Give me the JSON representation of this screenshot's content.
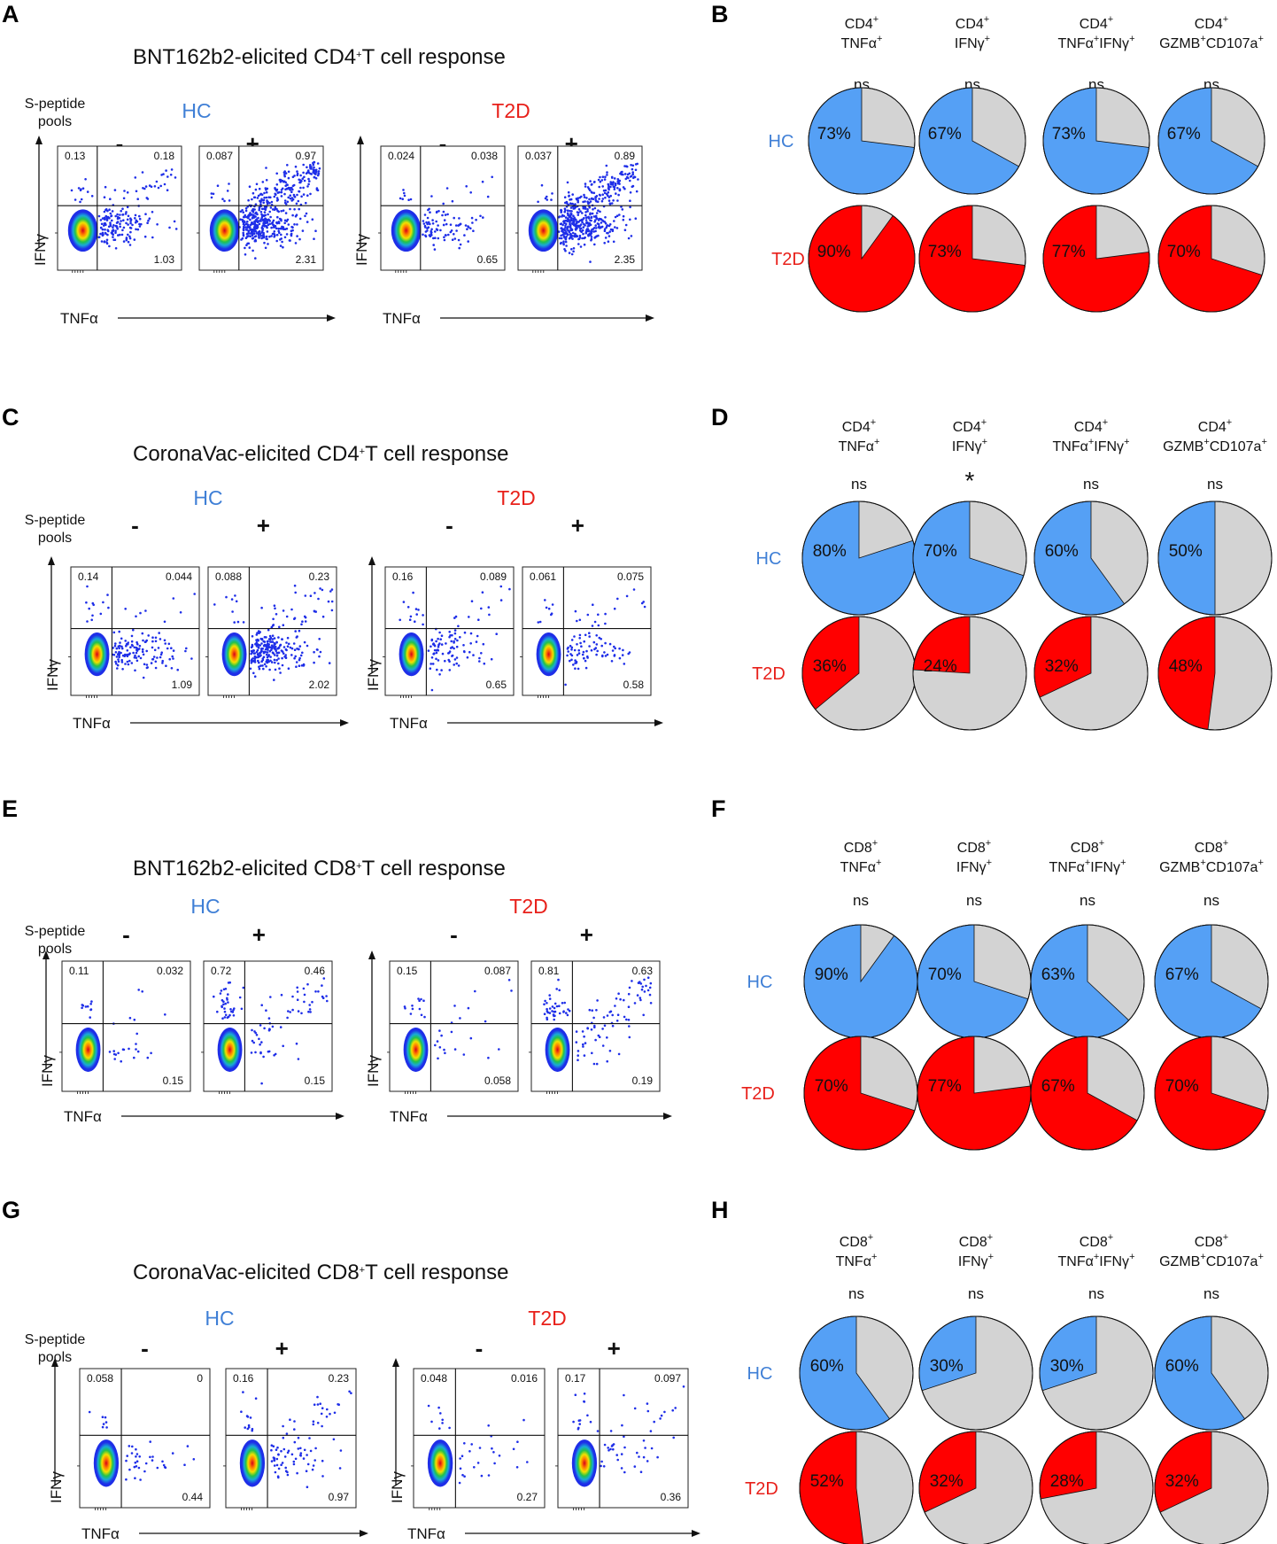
{
  "colors": {
    "hc": "#3f7fd6",
    "t2d": "#e8201a",
    "pie_hc": "#55a0f5",
    "pie_t2d": "#ff0000",
    "pie_rest": "#d3d3d3",
    "dot": "#1e2ee8"
  },
  "axes": {
    "x": "TNFα",
    "y": "IFNγ"
  },
  "stim": {
    "label1": "S-peptide",
    "label2": "pools",
    "minus": "-",
    "plus": "+"
  },
  "groups": {
    "hc": "HC",
    "t2d": "T2D"
  },
  "sections": [
    {
      "flow": {
        "letter": "A",
        "title": {
          "pre": "BNT162b2-elicited CD4",
          "sup": "+",
          "post": "T cell response"
        },
        "show_stim": true,
        "plots": [
          {
            "q": [
              "0.13",
              "0.18",
              "1.03"
            ]
          },
          {
            "q": [
              "0.087",
              "0.97",
              "2.31"
            ]
          },
          {
            "q": [
              "0.024",
              "0.038",
              "0.65"
            ]
          },
          {
            "q": [
              "0.037",
              "0.89",
              "2.35"
            ]
          }
        ]
      },
      "pies": {
        "letter": "B",
        "cols": [
          {
            "l1": "CD4",
            "l2": "TNFα",
            "sup": "+",
            "sig": "ns",
            "hc": 73,
            "hc_label": "73%",
            "t2d": 90,
            "t2d_label": "90%"
          },
          {
            "l1": "CD4",
            "l2": "IFNγ",
            "sup": "+",
            "sig": "ns",
            "hc": 67,
            "hc_label": "67%",
            "t2d": 73,
            "t2d_label": "73%"
          },
          {
            "l1": "CD4",
            "l2a": "TNFα",
            "l2b": "IFNγ",
            "sup": "+",
            "sig": "ns",
            "hc": 73,
            "hc_label": "73%",
            "t2d": 77,
            "t2d_label": "77%"
          },
          {
            "l1": "CD4",
            "l2a": "GZMB",
            "l2b": "CD107a",
            "sup": "+",
            "sig": "ns",
            "hc": 67,
            "hc_label": "67%",
            "t2d": 70,
            "t2d_label": "70%"
          }
        ]
      }
    },
    {
      "flow": {
        "letter": "C",
        "title": {
          "pre": "CoronaVac-elicited CD4",
          "sup": "+",
          "post": "T cell response"
        },
        "show_stim": true,
        "plots": [
          {
            "q": [
              "0.14",
              "0.044",
              "1.09"
            ]
          },
          {
            "q": [
              "0.088",
              "0.23",
              "2.02"
            ]
          },
          {
            "q": [
              "0.16",
              "0.089",
              "0.65"
            ]
          },
          {
            "q": [
              "0.061",
              "0.075",
              "0.58"
            ]
          }
        ]
      },
      "pies": {
        "letter": "D",
        "cols": [
          {
            "l1": "CD4",
            "l2": "TNFα",
            "sup": "+",
            "sig": "ns",
            "hc": 80,
            "hc_label": "80%",
            "t2d": 36,
            "t2d_label": "36%"
          },
          {
            "l1": "CD4",
            "l2": "IFNγ",
            "sup": "+",
            "sig": "*",
            "hc": 70,
            "hc_label": "70%",
            "t2d": 24,
            "t2d_label": "24%"
          },
          {
            "l1": "CD4",
            "l2a": "TNFα",
            "l2b": "IFNγ",
            "sup": "+",
            "sig": "ns",
            "hc": 60,
            "hc_label": "60%",
            "t2d": 32,
            "t2d_label": "32%"
          },
          {
            "l1": "CD4",
            "l2a": "GZMB",
            "l2b": "CD107a",
            "sup": "+",
            "sig": "ns",
            "hc": 50,
            "hc_label": "50%",
            "t2d": 48,
            "t2d_label": "48%"
          }
        ]
      }
    },
    {
      "flow": {
        "letter": "E",
        "title": {
          "pre": "BNT162b2-elicited CD8",
          "sup": "+",
          "post": "T cell response"
        },
        "show_stim": true,
        "plots": [
          {
            "q": [
              "0.11",
              "0.032",
              "0.15"
            ]
          },
          {
            "q": [
              "0.72",
              "0.46",
              "0.15"
            ]
          },
          {
            "q": [
              "0.15",
              "0.087",
              "0.058"
            ]
          },
          {
            "q": [
              "0.81",
              "0.63",
              "0.19"
            ]
          }
        ]
      },
      "pies": {
        "letter": "F",
        "cols": [
          {
            "l1": "CD8",
            "l2": "TNFα",
            "sup": "+",
            "sig": "ns",
            "hc": 90,
            "hc_label": "90%",
            "t2d": 70,
            "t2d_label": "70%"
          },
          {
            "l1": "CD8",
            "l2": "IFNγ",
            "sup": "+",
            "sig": "ns",
            "hc": 70,
            "hc_label": "70%",
            "t2d": 77,
            "t2d_label": "77%"
          },
          {
            "l1": "CD8",
            "l2a": "TNFα",
            "l2b": "IFNγ",
            "sup": "+",
            "sig": "ns",
            "hc": 63,
            "hc_label": "63%",
            "t2d": 67,
            "t2d_label": "67%"
          },
          {
            "l1": "CD8",
            "l2a": "GZMB",
            "l2b": "CD107a",
            "sup": "+",
            "sig": "ns",
            "hc": 67,
            "hc_label": "67%",
            "t2d": 70,
            "t2d_label": "70%"
          }
        ]
      }
    },
    {
      "flow": {
        "letter": "G",
        "title": {
          "pre": "CoronaVac-elicited CD8",
          "sup": "+",
          "post": "T cell response"
        },
        "show_stim": true,
        "plots": [
          {
            "q": [
              "0.058",
              "0",
              "0.44"
            ]
          },
          {
            "q": [
              "0.16",
              "0.23",
              "0.97"
            ]
          },
          {
            "q": [
              "0.048",
              "0.016",
              "0.27"
            ]
          },
          {
            "q": [
              "0.17",
              "0.097",
              "0.36"
            ]
          }
        ]
      },
      "pies": {
        "letter": "H",
        "cols": [
          {
            "l1": "CD8",
            "l2": "TNFα",
            "sup": "+",
            "sig": "ns",
            "hc": 60,
            "hc_label": "60%",
            "t2d": 52,
            "t2d_label": "52%"
          },
          {
            "l1": "CD8",
            "l2": "IFNγ",
            "sup": "+",
            "sig": "ns",
            "hc": 30,
            "hc_label": "30%",
            "t2d": 32,
            "t2d_label": "32%"
          },
          {
            "l1": "CD8",
            "l2a": "TNFα",
            "l2b": "IFNγ",
            "sup": "+",
            "sig": "ns",
            "hc": 30,
            "hc_label": "30%",
            "t2d": 28,
            "t2d_label": "28%"
          },
          {
            "l1": "CD8",
            "l2a": "GZMB",
            "l2b": "CD107a",
            "sup": "+",
            "sig": "ns",
            "hc": 60,
            "hc_label": "60%",
            "t2d": 32,
            "t2d_label": "32%"
          }
        ]
      }
    }
  ]
}
